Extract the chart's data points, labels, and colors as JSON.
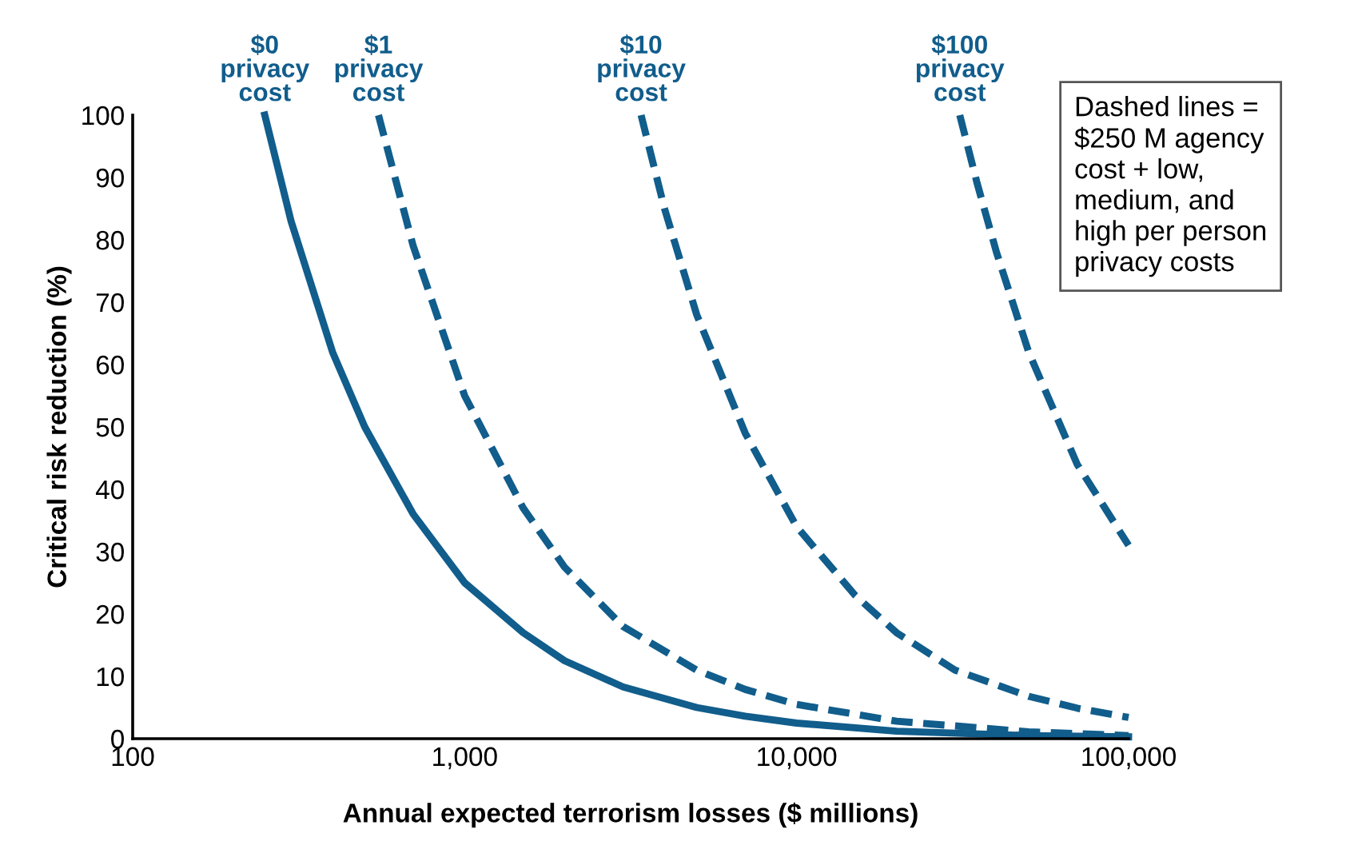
{
  "chart_data": {
    "type": "line",
    "xlabel": "Annual expected terrorism losses ($ millions)",
    "ylabel": "Critical risk reduction (%)",
    "log": "x",
    "grid": false,
    "marker": "none",
    "xlim": [
      100,
      100000
    ],
    "xticks": [
      100,
      {
        "value": 1000,
        "label": "1,000"
      },
      {
        "value": 10000,
        "label": "10,000"
      },
      {
        "value": 100000,
        "label": "100,000"
      }
    ],
    "ylim": [
      0,
      100
    ],
    "yticks": [
      0,
      10,
      20,
      30,
      40,
      50,
      60,
      70,
      80,
      90,
      100
    ],
    "series": [
      {
        "color": "#115d8c",
        "line_style": "solid",
        "x": [
          250,
          300,
          400,
          500,
          700,
          1000,
          1500,
          2000,
          3000,
          5000,
          7000,
          10000,
          20000,
          50000,
          100000
        ],
        "values": [
          100,
          83,
          62,
          50,
          36,
          25,
          17,
          12.5,
          8.3,
          5,
          3.6,
          2.5,
          1.2,
          0.5,
          0.3
        ]
      },
      {
        "color": "#115d8c",
        "line_style": "dashed",
        "x": [
          550,
          700,
          1000,
          1500,
          2000,
          3000,
          5000,
          7000,
          10000,
          20000,
          50000,
          100000
        ],
        "values": [
          100,
          79,
          55,
          37,
          27.5,
          18,
          11,
          7.9,
          5.5,
          2.8,
          1.1,
          0.5
        ]
      },
      {
        "color": "#115d8c",
        "line_style": "dashed",
        "x": [
          3400,
          4000,
          5000,
          7000,
          10000,
          15000,
          20000,
          30000,
          50000,
          70000,
          100000
        ],
        "values": [
          100,
          85,
          68,
          49,
          34,
          23,
          17,
          11,
          6.8,
          4.9,
          3.4
        ]
      },
      {
        "color": "#115d8c",
        "line_style": "dashed",
        "x": [
          31000,
          35000,
          40000,
          50000,
          70000,
          100000
        ],
        "values": [
          100,
          89,
          78,
          62,
          44,
          31
        ]
      }
    ],
    "annotations": [
      {
        "text": "$0\nprivacy\ncost",
        "x": 250,
        "y": 100
      },
      {
        "text": "$1\nprivacy\ncost",
        "x": 550,
        "y": 100
      },
      {
        "text": "$10\nprivacy\ncost",
        "x": 3400,
        "y": 100
      },
      {
        "text": "$100\nprivacy\ncost",
        "x": 31000,
        "y": 100
      },
      "Dashed lines =\n$250 M agency\ncost + low,\nmedium, and\nhigh per person\nprivacy costs"
    ]
  }
}
